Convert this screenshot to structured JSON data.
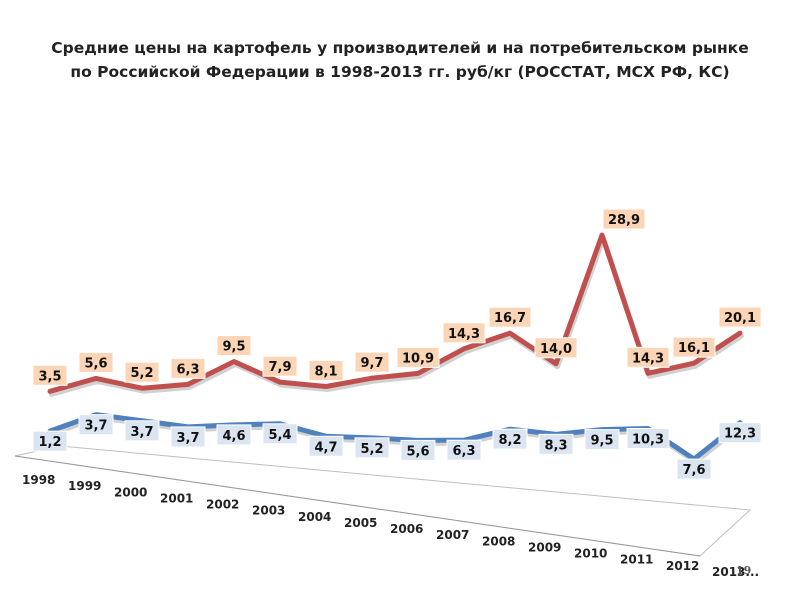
{
  "title_line1": "Средние цены на картофель у производителей и на потребительском рынке",
  "title_line2": "по Российской Федерации в 1998-2013 гг. руб/кг  (РОССТАТ, МСХ РФ, КС)",
  "page_number": "19",
  "chart_data": {
    "type": "line",
    "categories": [
      "1998",
      "1999",
      "2000",
      "2001",
      "2002",
      "2003",
      "2004",
      "2005",
      "2006",
      "2007",
      "2008",
      "2009",
      "2010",
      "2011",
      "2012",
      "2013..."
    ],
    "series": [
      {
        "values": [
          3.5,
          5.6,
          5.2,
          6.3,
          9.5,
          7.9,
          8.1,
          9.7,
          10.9,
          14.3,
          16.7,
          14.0,
          28.9,
          14.3,
          16.1,
          20.1
        ],
        "labels": [
          "3,5",
          "5,6",
          "5,2",
          "6,3",
          "9,5",
          "7,9",
          "8,1",
          "9,7",
          "10,9",
          "14,3",
          "16,7",
          "14,0",
          "28,9",
          "14,3",
          "16,1",
          "20,1"
        ],
        "color": "#c0504d",
        "label_bg": "#fbd5b5"
      },
      {
        "values": [
          1.2,
          3.7,
          3.7,
          3.7,
          4.6,
          5.4,
          4.7,
          5.2,
          5.6,
          6.3,
          8.2,
          8.3,
          9.5,
          10.3,
          7.6,
          12.3
        ],
        "labels": [
          "1,2",
          "3,7",
          "3,7",
          "3,7",
          "4,6",
          "5,4",
          "4,7",
          "5,2",
          "5,6",
          "6,3",
          "8,2",
          "8,3",
          "9,5",
          "10,3",
          "7,6",
          "12,3"
        ],
        "color": "#4f81bd",
        "label_bg": "#dbe5f1"
      }
    ],
    "grid": false,
    "legend": "none"
  }
}
